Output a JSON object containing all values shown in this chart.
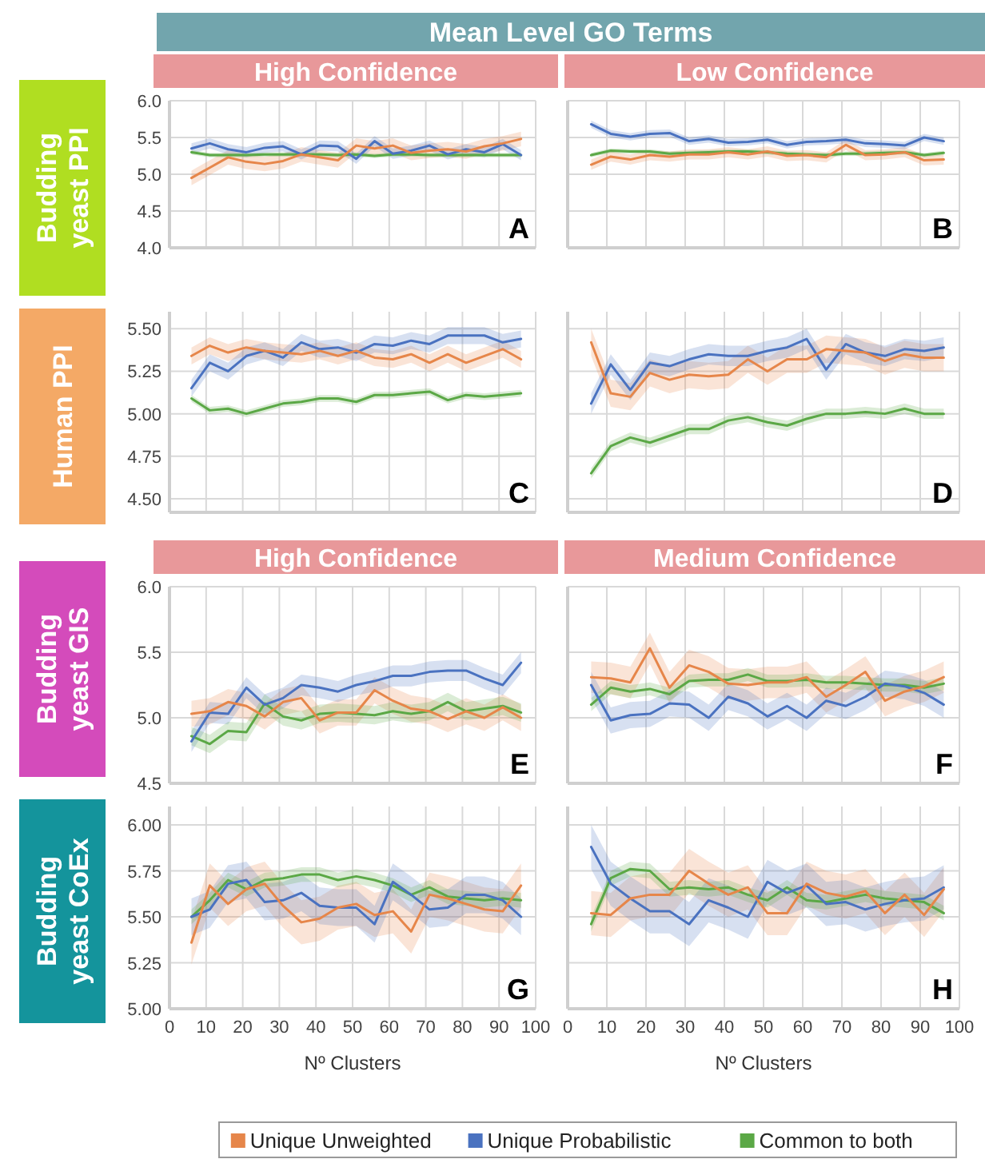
{
  "chart_data": [
    {
      "type": "other",
      "title": "Mean Level GO Terms"
    },
    {
      "type": "line",
      "title": "High Confidence",
      "ylabel": "Budding yeast PPI",
      "annotations": [
        "A"
      ],
      "tick_labels": "y",
      "grid": true,
      "xlim": [
        0,
        100
      ],
      "xticks": [
        0,
        10,
        20,
        30,
        40,
        50,
        60,
        70,
        80,
        90,
        100
      ],
      "ylim": [
        4,
        6
      ],
      "yticks": [
        {
          "value": 4,
          "label": "4.0"
        },
        4.5,
        {
          "value": 5,
          "label": "5.0"
        },
        5.5,
        {
          "value": 6,
          "label": "6.0"
        }
      ],
      "x": [
        6,
        11,
        16,
        21,
        26,
        31,
        36,
        41,
        46,
        51,
        56,
        61,
        66,
        71,
        76,
        81,
        86,
        91,
        96
      ],
      "series": [
        {
          "color": "#e6864a",
          "values": [
            4.95,
            5.09,
            5.23,
            5.17,
            5.14,
            5.18,
            5.27,
            5.23,
            5.19,
            5.39,
            5.35,
            5.39,
            5.29,
            5.32,
            5.34,
            5.31,
            5.38,
            5.42,
            5.48
          ],
          "lower": [
            4.85,
            4.99,
            5.13,
            5.07,
            5.04,
            5.08,
            5.17,
            5.13,
            5.09,
            5.29,
            5.25,
            5.29,
            5.19,
            5.22,
            5.24,
            5.21,
            5.28,
            5.32,
            5.38
          ],
          "upper": [
            5.05,
            5.19,
            5.33,
            5.27,
            5.24,
            5.28,
            5.37,
            5.33,
            5.29,
            5.49,
            5.45,
            5.49,
            5.39,
            5.42,
            5.44,
            5.41,
            5.48,
            5.52,
            5.58
          ]
        },
        {
          "color": "#4a72c0",
          "values": [
            5.35,
            5.42,
            5.34,
            5.3,
            5.36,
            5.38,
            5.27,
            5.39,
            5.38,
            5.21,
            5.45,
            5.28,
            5.32,
            5.39,
            5.27,
            5.34,
            5.3,
            5.41,
            5.26
          ],
          "lower": [
            5.28,
            5.35,
            5.27,
            5.23,
            5.29,
            5.31,
            5.2,
            5.32,
            5.31,
            5.14,
            5.38,
            5.21,
            5.25,
            5.32,
            5.2,
            5.27,
            5.23,
            5.34,
            5.19
          ],
          "upper": [
            5.42,
            5.49,
            5.41,
            5.37,
            5.43,
            5.45,
            5.34,
            5.46,
            5.45,
            5.28,
            5.52,
            5.35,
            5.39,
            5.46,
            5.34,
            5.41,
            5.37,
            5.48,
            5.33
          ]
        },
        {
          "color": "#5ba846",
          "values": [
            5.3,
            5.26,
            5.26,
            5.26,
            5.27,
            5.27,
            5.27,
            5.27,
            5.26,
            5.27,
            5.25,
            5.27,
            5.27,
            5.26,
            5.26,
            5.26,
            5.26,
            5.26,
            5.26
          ],
          "lower": [
            5.27,
            5.23,
            5.23,
            5.23,
            5.24,
            5.24,
            5.24,
            5.24,
            5.23,
            5.24,
            5.22,
            5.24,
            5.24,
            5.23,
            5.23,
            5.23,
            5.23,
            5.23,
            5.23
          ],
          "upper": [
            5.33,
            5.29,
            5.29,
            5.29,
            5.3,
            5.3,
            5.3,
            5.3,
            5.29,
            5.3,
            5.28,
            5.3,
            5.3,
            5.29,
            5.29,
            5.29,
            5.29,
            5.29,
            5.29
          ]
        }
      ]
    },
    {
      "type": "line",
      "title": "Low Confidence",
      "annotations": [
        "B"
      ],
      "tick_labels": false,
      "grid": true,
      "xlim": [
        0,
        100
      ],
      "xticks": [
        0,
        10,
        20,
        30,
        40,
        50,
        60,
        70,
        80,
        90,
        100
      ],
      "ylim": [
        4,
        6
      ],
      "yticks": [
        4,
        4.5,
        5,
        5.5,
        6
      ],
      "x": [
        6,
        11,
        16,
        21,
        26,
        31,
        36,
        41,
        46,
        51,
        56,
        61,
        66,
        71,
        76,
        81,
        86,
        91,
        96
      ],
      "series": [
        {
          "color": "#e6864a",
          "values": [
            5.13,
            5.24,
            5.2,
            5.26,
            5.24,
            5.27,
            5.27,
            5.3,
            5.27,
            5.31,
            5.25,
            5.26,
            5.23,
            5.4,
            5.26,
            5.27,
            5.3,
            5.19,
            5.2
          ],
          "lower": [
            5.06,
            5.17,
            5.13,
            5.19,
            5.17,
            5.2,
            5.2,
            5.23,
            5.2,
            5.24,
            5.18,
            5.19,
            5.16,
            5.33,
            5.19,
            5.2,
            5.23,
            5.12,
            5.13
          ],
          "upper": [
            5.2,
            5.31,
            5.27,
            5.33,
            5.31,
            5.34,
            5.34,
            5.37,
            5.34,
            5.38,
            5.32,
            5.33,
            5.3,
            5.47,
            5.33,
            5.34,
            5.37,
            5.26,
            5.27
          ]
        },
        {
          "color": "#4a72c0",
          "values": [
            5.68,
            5.55,
            5.51,
            5.55,
            5.56,
            5.45,
            5.48,
            5.43,
            5.44,
            5.47,
            5.4,
            5.44,
            5.45,
            5.47,
            5.42,
            5.41,
            5.39,
            5.5,
            5.45
          ],
          "lower": [
            5.63,
            5.5,
            5.46,
            5.5,
            5.51,
            5.4,
            5.43,
            5.38,
            5.39,
            5.42,
            5.35,
            5.39,
            5.4,
            5.42,
            5.37,
            5.36,
            5.34,
            5.45,
            5.4
          ],
          "upper": [
            5.73,
            5.6,
            5.56,
            5.6,
            5.61,
            5.5,
            5.53,
            5.48,
            5.49,
            5.52,
            5.45,
            5.49,
            5.5,
            5.52,
            5.47,
            5.46,
            5.44,
            5.55,
            5.5
          ]
        },
        {
          "color": "#5ba846",
          "values": [
            5.26,
            5.32,
            5.31,
            5.31,
            5.28,
            5.29,
            5.3,
            5.31,
            5.31,
            5.3,
            5.28,
            5.27,
            5.26,
            5.28,
            5.28,
            5.29,
            5.3,
            5.26,
            5.29
          ],
          "lower": [
            5.23,
            5.29,
            5.28,
            5.28,
            5.25,
            5.26,
            5.27,
            5.28,
            5.28,
            5.27,
            5.25,
            5.24,
            5.23,
            5.25,
            5.25,
            5.26,
            5.27,
            5.23,
            5.26
          ],
          "upper": [
            5.29,
            5.35,
            5.34,
            5.34,
            5.31,
            5.32,
            5.33,
            5.34,
            5.34,
            5.33,
            5.31,
            5.3,
            5.29,
            5.31,
            5.31,
            5.32,
            5.33,
            5.29,
            5.32
          ]
        }
      ]
    },
    {
      "type": "line",
      "ylabel": "Human PPI",
      "annotations": [
        "C"
      ],
      "tick_labels": "y",
      "grid": true,
      "xlim": [
        0,
        100
      ],
      "xticks": [
        0,
        10,
        20,
        30,
        40,
        50,
        60,
        70,
        80,
        90,
        100
      ],
      "ylim": [
        4.42,
        5.6
      ],
      "yticks": [
        {
          "value": 4.5,
          "label": "4.50"
        },
        4.75,
        {
          "value": 5,
          "label": "5.00"
        },
        5.25,
        {
          "value": 5.5,
          "label": "5.50"
        }
      ],
      "x": [
        6,
        11,
        16,
        21,
        26,
        31,
        36,
        41,
        46,
        51,
        56,
        61,
        66,
        71,
        76,
        81,
        86,
        91,
        96
      ],
      "series": [
        {
          "color": "#e6864a",
          "values": [
            5.34,
            5.4,
            5.36,
            5.39,
            5.37,
            5.36,
            5.35,
            5.37,
            5.34,
            5.37,
            5.33,
            5.32,
            5.35,
            5.3,
            5.35,
            5.3,
            5.34,
            5.38,
            5.32
          ],
          "lower": [
            5.29,
            5.35,
            5.31,
            5.34,
            5.32,
            5.31,
            5.3,
            5.32,
            5.29,
            5.32,
            5.28,
            5.27,
            5.3,
            5.25,
            5.3,
            5.25,
            5.29,
            5.33,
            5.27
          ],
          "upper": [
            5.39,
            5.45,
            5.41,
            5.44,
            5.42,
            5.41,
            5.4,
            5.42,
            5.39,
            5.42,
            5.38,
            5.37,
            5.4,
            5.35,
            5.4,
            5.35,
            5.39,
            5.43,
            5.37
          ]
        },
        {
          "color": "#4a72c0",
          "values": [
            5.15,
            5.3,
            5.25,
            5.34,
            5.37,
            5.33,
            5.42,
            5.38,
            5.39,
            5.36,
            5.41,
            5.4,
            5.43,
            5.41,
            5.46,
            5.46,
            5.46,
            5.42,
            5.44
          ],
          "lower": [
            5.1,
            5.25,
            5.2,
            5.29,
            5.32,
            5.28,
            5.37,
            5.33,
            5.34,
            5.31,
            5.36,
            5.35,
            5.38,
            5.36,
            5.41,
            5.41,
            5.41,
            5.37,
            5.39
          ],
          "upper": [
            5.2,
            5.35,
            5.3,
            5.39,
            5.42,
            5.38,
            5.47,
            5.43,
            5.44,
            5.41,
            5.46,
            5.45,
            5.48,
            5.46,
            5.51,
            5.51,
            5.51,
            5.47,
            5.49
          ]
        },
        {
          "color": "#5ba846",
          "values": [
            5.09,
            5.02,
            5.03,
            5.0,
            5.03,
            5.06,
            5.07,
            5.09,
            5.09,
            5.07,
            5.11,
            5.11,
            5.12,
            5.13,
            5.08,
            5.11,
            5.1,
            5.11,
            5.12
          ],
          "lower": [
            5.07,
            5.0,
            5.01,
            4.98,
            5.01,
            5.04,
            5.05,
            5.07,
            5.07,
            5.05,
            5.09,
            5.09,
            5.1,
            5.11,
            5.06,
            5.09,
            5.08,
            5.09,
            5.1
          ],
          "upper": [
            5.11,
            5.04,
            5.05,
            5.02,
            5.05,
            5.08,
            5.09,
            5.11,
            5.11,
            5.09,
            5.13,
            5.13,
            5.14,
            5.15,
            5.1,
            5.13,
            5.12,
            5.13,
            5.14
          ]
        }
      ]
    },
    {
      "type": "line",
      "annotations": [
        "D"
      ],
      "tick_labels": false,
      "grid": true,
      "xlim": [
        0,
        100
      ],
      "xticks": [
        0,
        10,
        20,
        30,
        40,
        50,
        60,
        70,
        80,
        90,
        100
      ],
      "ylim": [
        4.42,
        5.6
      ],
      "yticks": [
        4.5,
        4.75,
        5,
        5.25,
        5.5
      ],
      "x": [
        6,
        11,
        16,
        21,
        26,
        31,
        36,
        41,
        46,
        51,
        56,
        61,
        66,
        71,
        76,
        81,
        86,
        91,
        96
      ],
      "series": [
        {
          "color": "#e6864a",
          "values": [
            5.42,
            5.12,
            5.1,
            5.24,
            5.2,
            5.23,
            5.22,
            5.23,
            5.32,
            5.25,
            5.32,
            5.32,
            5.38,
            5.37,
            5.36,
            5.31,
            5.35,
            5.33,
            5.33
          ],
          "lower": [
            5.34,
            5.04,
            5.02,
            5.16,
            5.12,
            5.15,
            5.14,
            5.15,
            5.24,
            5.17,
            5.24,
            5.24,
            5.3,
            5.29,
            5.28,
            5.23,
            5.27,
            5.25,
            5.25
          ],
          "upper": [
            5.5,
            5.2,
            5.18,
            5.32,
            5.28,
            5.31,
            5.3,
            5.31,
            5.4,
            5.33,
            5.4,
            5.4,
            5.46,
            5.45,
            5.44,
            5.39,
            5.43,
            5.41,
            5.41
          ]
        },
        {
          "color": "#4a72c0",
          "values": [
            5.06,
            5.29,
            5.14,
            5.3,
            5.28,
            5.32,
            5.35,
            5.34,
            5.34,
            5.37,
            5.39,
            5.44,
            5.26,
            5.41,
            5.36,
            5.34,
            5.38,
            5.37,
            5.39
          ],
          "lower": [
            5.0,
            5.23,
            5.08,
            5.24,
            5.22,
            5.26,
            5.29,
            5.28,
            5.28,
            5.31,
            5.33,
            5.38,
            5.2,
            5.35,
            5.3,
            5.28,
            5.32,
            5.31,
            5.33
          ],
          "upper": [
            5.12,
            5.35,
            5.2,
            5.36,
            5.34,
            5.38,
            5.41,
            5.4,
            5.4,
            5.43,
            5.45,
            5.5,
            5.32,
            5.47,
            5.42,
            5.4,
            5.44,
            5.43,
            5.45
          ]
        },
        {
          "color": "#5ba846",
          "values": [
            4.65,
            4.81,
            4.86,
            4.83,
            4.87,
            4.91,
            4.91,
            4.96,
            4.98,
            4.95,
            4.93,
            4.97,
            5.0,
            5.0,
            5.01,
            5.0,
            5.03,
            5.0,
            5.0
          ],
          "lower": [
            4.62,
            4.78,
            4.83,
            4.8,
            4.84,
            4.88,
            4.88,
            4.93,
            4.95,
            4.92,
            4.9,
            4.94,
            4.97,
            4.97,
            4.98,
            4.97,
            5.0,
            4.97,
            4.97
          ],
          "upper": [
            4.68,
            4.84,
            4.89,
            4.86,
            4.9,
            4.94,
            4.94,
            4.99,
            5.01,
            4.98,
            4.96,
            5.0,
            5.03,
            5.03,
            5.04,
            5.03,
            5.06,
            5.03,
            5.03
          ]
        }
      ]
    },
    {
      "type": "line",
      "title": "High Confidence",
      "ylabel": "Budding yeast GIS",
      "annotations": [
        "E"
      ],
      "tick_labels": "y",
      "grid": true,
      "xlim": [
        0,
        100
      ],
      "xticks": [
        0,
        10,
        20,
        30,
        40,
        50,
        60,
        70,
        80,
        90,
        100
      ],
      "ylim": [
        4.5,
        6
      ],
      "yticks": [
        4.5,
        {
          "value": 5,
          "label": "5.0"
        },
        5.5,
        {
          "value": 6,
          "label": "6.0"
        }
      ],
      "x": [
        6,
        11,
        16,
        21,
        26,
        31,
        36,
        41,
        46,
        51,
        56,
        61,
        66,
        71,
        76,
        81,
        86,
        91,
        96
      ],
      "series": [
        {
          "color": "#e6864a",
          "values": [
            5.03,
            5.05,
            5.12,
            5.09,
            5.01,
            5.12,
            5.15,
            4.98,
            5.04,
            5.04,
            5.21,
            5.13,
            5.07,
            5.05,
            4.99,
            5.05,
            5.0,
            5.08,
            5.0
          ],
          "lower": [
            4.93,
            4.95,
            5.02,
            4.99,
            4.91,
            5.02,
            5.05,
            4.88,
            4.94,
            4.94,
            5.11,
            5.03,
            4.97,
            4.95,
            4.89,
            4.95,
            4.9,
            4.98,
            4.9
          ],
          "upper": [
            5.13,
            5.15,
            5.22,
            5.19,
            5.11,
            5.22,
            5.25,
            5.08,
            5.14,
            5.14,
            5.31,
            5.23,
            5.17,
            5.15,
            5.09,
            5.15,
            5.1,
            5.18,
            5.1
          ]
        },
        {
          "color": "#4a72c0",
          "values": [
            4.82,
            5.04,
            5.03,
            5.23,
            5.1,
            5.15,
            5.25,
            5.23,
            5.2,
            5.25,
            5.28,
            5.32,
            5.32,
            5.35,
            5.36,
            5.36,
            5.3,
            5.25,
            5.42
          ],
          "lower": [
            4.74,
            4.96,
            4.95,
            5.15,
            5.02,
            5.07,
            5.17,
            5.15,
            5.12,
            5.17,
            5.2,
            5.24,
            5.24,
            5.27,
            5.28,
            5.28,
            5.22,
            5.17,
            5.34
          ],
          "upper": [
            4.9,
            5.12,
            5.11,
            5.31,
            5.18,
            5.23,
            5.33,
            5.31,
            5.28,
            5.33,
            5.36,
            5.4,
            5.4,
            5.43,
            5.44,
            5.44,
            5.38,
            5.33,
            5.5
          ]
        },
        {
          "color": "#5ba846",
          "values": [
            4.86,
            4.8,
            4.9,
            4.89,
            5.11,
            5.01,
            4.98,
            5.03,
            5.04,
            5.03,
            5.02,
            5.05,
            5.03,
            5.05,
            5.12,
            5.05,
            5.07,
            5.09,
            5.04
          ],
          "lower": [
            4.79,
            4.73,
            4.83,
            4.82,
            5.04,
            4.94,
            4.91,
            4.96,
            4.97,
            4.96,
            4.95,
            4.98,
            4.96,
            4.98,
            5.05,
            4.98,
            5.0,
            5.02,
            4.97
          ],
          "upper": [
            4.93,
            4.87,
            4.97,
            4.96,
            5.18,
            5.08,
            5.05,
            5.1,
            5.11,
            5.1,
            5.09,
            5.12,
            5.1,
            5.12,
            5.19,
            5.12,
            5.14,
            5.16,
            5.11
          ]
        }
      ]
    },
    {
      "type": "line",
      "title": "Medium Confidence",
      "annotations": [
        "F"
      ],
      "tick_labels": false,
      "grid": true,
      "xlim": [
        0,
        100
      ],
      "xticks": [
        0,
        10,
        20,
        30,
        40,
        50,
        60,
        70,
        80,
        90,
        100
      ],
      "ylim": [
        4.5,
        6
      ],
      "yticks": [
        4.5,
        5,
        5.5,
        6
      ],
      "x": [
        6,
        11,
        16,
        21,
        26,
        31,
        36,
        41,
        46,
        51,
        56,
        61,
        66,
        71,
        76,
        81,
        86,
        91,
        96
      ],
      "series": [
        {
          "color": "#e6864a",
          "values": [
            5.31,
            5.3,
            5.27,
            5.53,
            5.23,
            5.4,
            5.35,
            5.26,
            5.25,
            5.27,
            5.27,
            5.31,
            5.16,
            5.25,
            5.35,
            5.13,
            5.2,
            5.24,
            5.31
          ],
          "lower": [
            5.19,
            5.18,
            5.15,
            5.41,
            5.11,
            5.28,
            5.23,
            5.14,
            5.13,
            5.15,
            5.15,
            5.19,
            5.04,
            5.13,
            5.23,
            5.01,
            5.08,
            5.12,
            5.19
          ],
          "upper": [
            5.43,
            5.42,
            5.39,
            5.65,
            5.35,
            5.52,
            5.47,
            5.38,
            5.37,
            5.39,
            5.39,
            5.43,
            5.28,
            5.37,
            5.47,
            5.25,
            5.32,
            5.36,
            5.43
          ]
        },
        {
          "color": "#4a72c0",
          "values": [
            5.25,
            4.98,
            5.02,
            5.03,
            5.11,
            5.1,
            5.0,
            5.16,
            5.11,
            5.01,
            5.09,
            5.0,
            5.13,
            5.09,
            5.16,
            5.26,
            5.24,
            5.19,
            5.1
          ],
          "lower": [
            5.15,
            4.88,
            4.92,
            4.93,
            5.01,
            5.0,
            4.9,
            5.06,
            5.01,
            4.91,
            4.99,
            4.9,
            5.03,
            4.99,
            5.06,
            5.16,
            5.14,
            5.09,
            5.0
          ],
          "upper": [
            5.35,
            5.08,
            5.12,
            5.13,
            5.21,
            5.2,
            5.1,
            5.26,
            5.21,
            5.11,
            5.19,
            5.1,
            5.23,
            5.19,
            5.26,
            5.36,
            5.34,
            5.29,
            5.2
          ]
        },
        {
          "color": "#5ba846",
          "values": [
            5.1,
            5.23,
            5.2,
            5.22,
            5.18,
            5.28,
            5.29,
            5.29,
            5.33,
            5.28,
            5.28,
            5.29,
            5.27,
            5.27,
            5.26,
            5.25,
            5.25,
            5.23,
            5.26
          ],
          "lower": [
            5.05,
            5.18,
            5.15,
            5.17,
            5.13,
            5.23,
            5.24,
            5.24,
            5.28,
            5.23,
            5.23,
            5.24,
            5.22,
            5.22,
            5.21,
            5.2,
            5.2,
            5.18,
            5.21
          ],
          "upper": [
            5.15,
            5.28,
            5.25,
            5.27,
            5.23,
            5.33,
            5.34,
            5.34,
            5.38,
            5.33,
            5.33,
            5.34,
            5.32,
            5.32,
            5.31,
            5.3,
            5.3,
            5.28,
            5.31
          ]
        }
      ]
    },
    {
      "type": "line",
      "ylabel": "Budding yeast CoEx",
      "xlabel": "Nº Clusters",
      "annotations": [
        "G"
      ],
      "grid": true,
      "xlim": [
        0,
        100
      ],
      "xticks": [
        0,
        10,
        20,
        30,
        40,
        50,
        60,
        70,
        80,
        90,
        100
      ],
      "ylim": [
        5,
        6.1
      ],
      "yticks": [
        {
          "value": 5,
          "label": "5.00"
        },
        5.25,
        {
          "value": 5.5,
          "label": "5.50"
        },
        5.75,
        {
          "value": 6,
          "label": "6.00"
        }
      ],
      "x": [
        6,
        11,
        16,
        21,
        26,
        31,
        36,
        41,
        46,
        51,
        56,
        61,
        66,
        71,
        76,
        81,
        86,
        91,
        96
      ],
      "series": [
        {
          "color": "#e6864a",
          "values": [
            5.36,
            5.67,
            5.57,
            5.65,
            5.68,
            5.56,
            5.47,
            5.49,
            5.55,
            5.57,
            5.51,
            5.53,
            5.42,
            5.62,
            5.6,
            5.57,
            5.54,
            5.53,
            5.67
          ],
          "lower": [
            5.24,
            5.55,
            5.45,
            5.53,
            5.56,
            5.44,
            5.35,
            5.37,
            5.43,
            5.45,
            5.39,
            5.41,
            5.3,
            5.5,
            5.48,
            5.45,
            5.42,
            5.41,
            5.55
          ],
          "upper": [
            5.48,
            5.79,
            5.69,
            5.77,
            5.8,
            5.68,
            5.59,
            5.61,
            5.67,
            5.69,
            5.63,
            5.65,
            5.54,
            5.74,
            5.72,
            5.69,
            5.66,
            5.65,
            5.79
          ]
        },
        {
          "color": "#4a72c0",
          "values": [
            5.5,
            5.54,
            5.68,
            5.7,
            5.58,
            5.59,
            5.63,
            5.56,
            5.55,
            5.55,
            5.46,
            5.69,
            5.62,
            5.54,
            5.55,
            5.62,
            5.62,
            5.59,
            5.5
          ],
          "lower": [
            5.4,
            5.44,
            5.58,
            5.6,
            5.48,
            5.49,
            5.53,
            5.46,
            5.45,
            5.45,
            5.36,
            5.59,
            5.52,
            5.44,
            5.45,
            5.52,
            5.52,
            5.49,
            5.4
          ],
          "upper": [
            5.6,
            5.64,
            5.78,
            5.8,
            5.68,
            5.69,
            5.73,
            5.66,
            5.65,
            5.65,
            5.56,
            5.79,
            5.72,
            5.64,
            5.65,
            5.72,
            5.72,
            5.69,
            5.6
          ]
        },
        {
          "color": "#5ba846",
          "values": [
            5.5,
            5.59,
            5.7,
            5.65,
            5.7,
            5.71,
            5.73,
            5.73,
            5.7,
            5.72,
            5.7,
            5.67,
            5.62,
            5.66,
            5.61,
            5.6,
            5.59,
            5.6,
            5.59
          ],
          "lower": [
            5.46,
            5.55,
            5.66,
            5.61,
            5.66,
            5.67,
            5.69,
            5.69,
            5.66,
            5.68,
            5.66,
            5.63,
            5.58,
            5.62,
            5.57,
            5.56,
            5.55,
            5.56,
            5.55
          ],
          "upper": [
            5.54,
            5.63,
            5.74,
            5.69,
            5.74,
            5.75,
            5.77,
            5.77,
            5.74,
            5.76,
            5.74,
            5.71,
            5.66,
            5.7,
            5.65,
            5.64,
            5.63,
            5.64,
            5.63
          ]
        }
      ]
    },
    {
      "type": "line",
      "xlabel": "Nº Clusters",
      "annotations": [
        "H"
      ],
      "tick_labels": "x",
      "grid": true,
      "legend": "bottom",
      "xlim": [
        0,
        100
      ],
      "xticks": [
        0,
        10,
        20,
        30,
        40,
        50,
        60,
        70,
        80,
        90,
        100
      ],
      "ylim": [
        5,
        6.1
      ],
      "yticks": [
        5,
        5.25,
        5.5,
        5.75,
        6
      ],
      "x": [
        6,
        11,
        16,
        21,
        26,
        31,
        36,
        41,
        46,
        51,
        56,
        61,
        66,
        71,
        76,
        81,
        86,
        91,
        96
      ],
      "series": [
        {
          "name": "Unique Unweighted",
          "color": "#e6864a",
          "values": [
            5.52,
            5.51,
            5.6,
            5.62,
            5.62,
            5.75,
            5.68,
            5.62,
            5.66,
            5.52,
            5.52,
            5.68,
            5.63,
            5.61,
            5.64,
            5.52,
            5.62,
            5.51,
            5.65
          ],
          "lower": [
            5.4,
            5.39,
            5.48,
            5.5,
            5.5,
            5.63,
            5.56,
            5.5,
            5.54,
            5.4,
            5.4,
            5.56,
            5.51,
            5.49,
            5.52,
            5.4,
            5.5,
            5.39,
            5.53
          ],
          "upper": [
            5.64,
            5.63,
            5.72,
            5.74,
            5.74,
            5.87,
            5.8,
            5.74,
            5.78,
            5.64,
            5.64,
            5.8,
            5.75,
            5.73,
            5.76,
            5.64,
            5.74,
            5.63,
            5.77
          ]
        },
        {
          "name": "Unique Probabilistic",
          "color": "#4a72c0",
          "values": [
            5.88,
            5.68,
            5.6,
            5.53,
            5.53,
            5.46,
            5.59,
            5.55,
            5.5,
            5.69,
            5.63,
            5.67,
            5.57,
            5.58,
            5.54,
            5.57,
            5.59,
            5.6,
            5.66
          ],
          "lower": [
            5.76,
            5.56,
            5.48,
            5.41,
            5.41,
            5.34,
            5.47,
            5.43,
            5.38,
            5.57,
            5.51,
            5.55,
            5.45,
            5.46,
            5.42,
            5.45,
            5.47,
            5.48,
            5.54
          ],
          "upper": [
            6.0,
            5.8,
            5.72,
            5.65,
            5.65,
            5.58,
            5.71,
            5.67,
            5.62,
            5.81,
            5.75,
            5.79,
            5.69,
            5.7,
            5.66,
            5.69,
            5.71,
            5.72,
            5.78
          ]
        },
        {
          "name": "Common to both",
          "color": "#5ba846",
          "values": [
            5.46,
            5.71,
            5.76,
            5.75,
            5.65,
            5.66,
            5.65,
            5.66,
            5.62,
            5.59,
            5.66,
            5.59,
            5.58,
            5.6,
            5.62,
            5.6,
            5.59,
            5.58,
            5.52
          ],
          "lower": [
            5.42,
            5.67,
            5.72,
            5.71,
            5.61,
            5.62,
            5.61,
            5.62,
            5.58,
            5.55,
            5.62,
            5.55,
            5.54,
            5.56,
            5.58,
            5.56,
            5.55,
            5.54,
            5.48
          ],
          "upper": [
            5.5,
            5.75,
            5.8,
            5.79,
            5.69,
            5.7,
            5.69,
            5.7,
            5.66,
            5.63,
            5.7,
            5.63,
            5.62,
            5.64,
            5.66,
            5.64,
            5.63,
            5.62,
            5.56
          ]
        }
      ]
    }
  ]
}
